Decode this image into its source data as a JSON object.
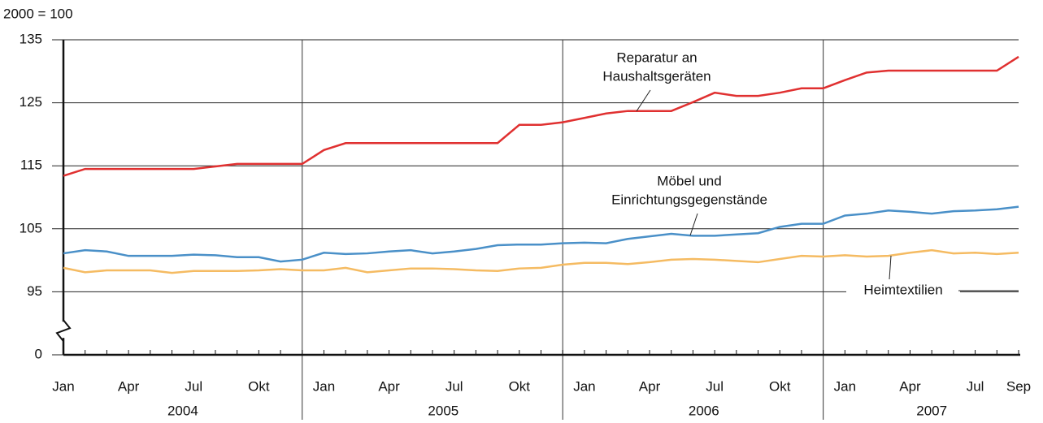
{
  "chart_data": {
    "type": "line",
    "unit_label": "2000 = 100",
    "categories": [
      "Jan",
      null,
      null,
      "Apr",
      null,
      null,
      "Jul",
      null,
      null,
      "Okt",
      null,
      null,
      "Jan",
      null,
      null,
      "Apr",
      null,
      null,
      "Jul",
      null,
      null,
      "Okt",
      null,
      null,
      "Jan",
      null,
      null,
      "Apr",
      null,
      null,
      "Jul",
      null,
      null,
      "Okt",
      null,
      null,
      "Jan",
      null,
      null,
      "Apr",
      null,
      null,
      "Jul",
      null,
      "Sep"
    ],
    "years": [
      "2004",
      "2005",
      "2006",
      "2007"
    ],
    "ylim": [
      0,
      135
    ],
    "yticks": [
      0,
      95,
      105,
      115,
      125,
      135
    ],
    "axis_break": true,
    "grid": true,
    "series": [
      {
        "name": [
          "Reparatur an",
          "Haushaltsgeräten"
        ],
        "color": "#e03030",
        "values": [
          113.4,
          114.5,
          114.5,
          114.5,
          114.5,
          114.5,
          114.5,
          114.9,
          115.3,
          115.3,
          115.3,
          115.3,
          117.5,
          118.6,
          118.6,
          118.6,
          118.6,
          118.6,
          118.6,
          118.6,
          118.6,
          121.5,
          121.5,
          121.9,
          122.6,
          123.3,
          123.7,
          123.7,
          123.7,
          125.1,
          126.6,
          126.1,
          126.1,
          126.6,
          127.3,
          127.3,
          128.6,
          129.8,
          130.1,
          130.1,
          130.1,
          130.1,
          130.1,
          130.1,
          132.3
        ]
      },
      {
        "name": [
          "Möbel und",
          "Einrichtungsgegenstände"
        ],
        "color": "#4a90c8",
        "values": [
          101.1,
          101.6,
          101.4,
          100.7,
          100.7,
          100.7,
          100.9,
          100.8,
          100.5,
          100.5,
          99.8,
          100.1,
          101.2,
          101.0,
          101.1,
          101.4,
          101.6,
          101.1,
          101.4,
          101.8,
          102.4,
          102.5,
          102.5,
          102.7,
          102.8,
          102.7,
          103.4,
          103.8,
          104.2,
          103.9,
          103.9,
          104.1,
          104.3,
          105.3,
          105.8,
          105.8,
          107.1,
          107.4,
          107.9,
          107.7,
          107.4,
          107.8,
          107.9,
          108.1,
          108.5
        ]
      },
      {
        "name": [
          "Heimtextilien"
        ],
        "color": "#f5bb62",
        "values": [
          98.8,
          98.1,
          98.4,
          98.4,
          98.4,
          98.0,
          98.3,
          98.3,
          98.3,
          98.4,
          98.6,
          98.4,
          98.4,
          98.8,
          98.1,
          98.4,
          98.7,
          98.7,
          98.6,
          98.4,
          98.3,
          98.7,
          98.8,
          99.3,
          99.6,
          99.6,
          99.4,
          99.7,
          100.1,
          100.2,
          100.1,
          99.9,
          99.7,
          100.2,
          100.7,
          100.6,
          100.8,
          100.6,
          100.7,
          101.2,
          101.6,
          101.1,
          101.2,
          101.0,
          101.2
        ]
      }
    ]
  }
}
